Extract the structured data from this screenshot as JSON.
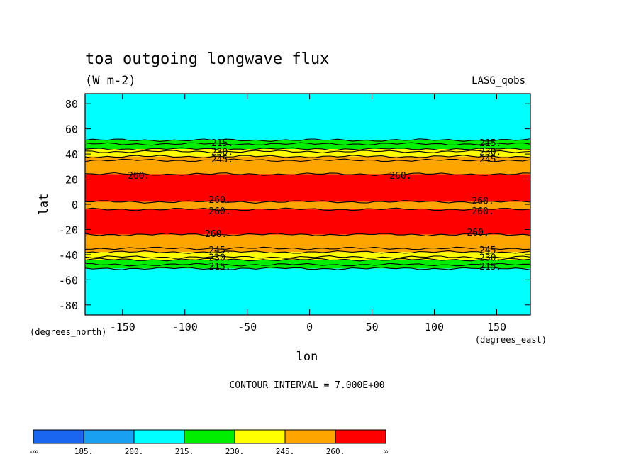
{
  "chart_data": {
    "type": "heatmap",
    "title": "toa outgoing longwave flux",
    "units": "(W m-2)",
    "source": "LASG_qobs",
    "xlabel": "lon",
    "ylabel": "lat",
    "x_units": "(degrees_east)",
    "y_units": "(degrees_north)",
    "xlim": [
      -180,
      177
    ],
    "ylim": [
      -88,
      88
    ],
    "x_ticks": [
      -150,
      -100,
      -50,
      0,
      50,
      100,
      150
    ],
    "x_tick_labels": [
      "-150",
      "-100",
      "-50",
      "0",
      "50",
      "100",
      "150"
    ],
    "y_ticks": [
      80,
      60,
      40,
      20,
      0,
      -20,
      -40,
      -60,
      -80
    ],
    "y_tick_labels": [
      "80",
      "60",
      "40",
      "20",
      "0",
      "-20",
      "-40",
      "-60",
      "-80"
    ],
    "contour_interval_text": "CONTOUR INTERVAL = 7.000E+00",
    "colorbar": {
      "labels": [
        "-∞",
        "185.",
        "200.",
        "215.",
        "230.",
        "245.",
        "260.",
        "∞"
      ],
      "colors": [
        "#1a66f0",
        "#1aa0f0",
        "#00ffff",
        "#00ee00",
        "#ffff00",
        "#ffa500",
        "#ff0000"
      ]
    },
    "bands": [
      {
        "lat_from": 88,
        "lat_to": 51,
        "level": 200,
        "color": "#00ffff"
      },
      {
        "lat_from": 51,
        "lat_to": 44,
        "level": 215,
        "color": "#00ee00"
      },
      {
        "lat_from": 44,
        "lat_to": 38,
        "level": 230,
        "color": "#ffff00"
      },
      {
        "lat_from": 38,
        "lat_to": 24,
        "level": 245,
        "color": "#ffa500"
      },
      {
        "lat_from": 24,
        "lat_to": 2,
        "level": 260,
        "color": "#ff0000"
      },
      {
        "lat_from": 2,
        "lat_to": -4,
        "level": 245,
        "color": "#ffa500"
      },
      {
        "lat_from": -4,
        "lat_to": -24,
        "level": 260,
        "color": "#ff0000"
      },
      {
        "lat_from": -24,
        "lat_to": -38,
        "level": 245,
        "color": "#ffa500"
      },
      {
        "lat_from": -38,
        "lat_to": -44,
        "level": 230,
        "color": "#ffff00"
      },
      {
        "lat_from": -44,
        "lat_to": -51,
        "level": 215,
        "color": "#00ee00"
      },
      {
        "lat_from": -51,
        "lat_to": -88,
        "level": 200,
        "color": "#00ffff"
      }
    ],
    "contour_lines": [
      51,
      48,
      44,
      42,
      38,
      35,
      24,
      2,
      -4,
      -24,
      -35,
      -38,
      -42,
      -44,
      -48,
      -51
    ],
    "contour_labels": [
      {
        "lon": -70,
        "lat": 49,
        "text": "215."
      },
      {
        "lon": -70,
        "lat": 42,
        "text": "230."
      },
      {
        "lon": -70,
        "lat": 36,
        "text": "245."
      },
      {
        "lon": -137,
        "lat": 23,
        "text": "260."
      },
      {
        "lon": -72,
        "lat": 4,
        "text": "260."
      },
      {
        "lon": -72,
        "lat": -5,
        "text": "260."
      },
      {
        "lon": -75,
        "lat": -23,
        "text": "260."
      },
      {
        "lon": -72,
        "lat": -36,
        "text": "245."
      },
      {
        "lon": -72,
        "lat": -42,
        "text": "230."
      },
      {
        "lon": -72,
        "lat": -49,
        "text": "215."
      },
      {
        "lon": 73,
        "lat": 23,
        "text": "260."
      },
      {
        "lon": 145,
        "lat": 49,
        "text": "215."
      },
      {
        "lon": 145,
        "lat": 42,
        "text": "230."
      },
      {
        "lon": 145,
        "lat": 36,
        "text": "245."
      },
      {
        "lon": 139,
        "lat": 3,
        "text": "260."
      },
      {
        "lon": 139,
        "lat": -5,
        "text": "260."
      },
      {
        "lon": 135,
        "lat": -22,
        "text": "260."
      },
      {
        "lon": 145,
        "lat": -36,
        "text": "245."
      },
      {
        "lon": 145,
        "lat": -42,
        "text": "230."
      },
      {
        "lon": 145,
        "lat": -49,
        "text": "215."
      }
    ]
  }
}
